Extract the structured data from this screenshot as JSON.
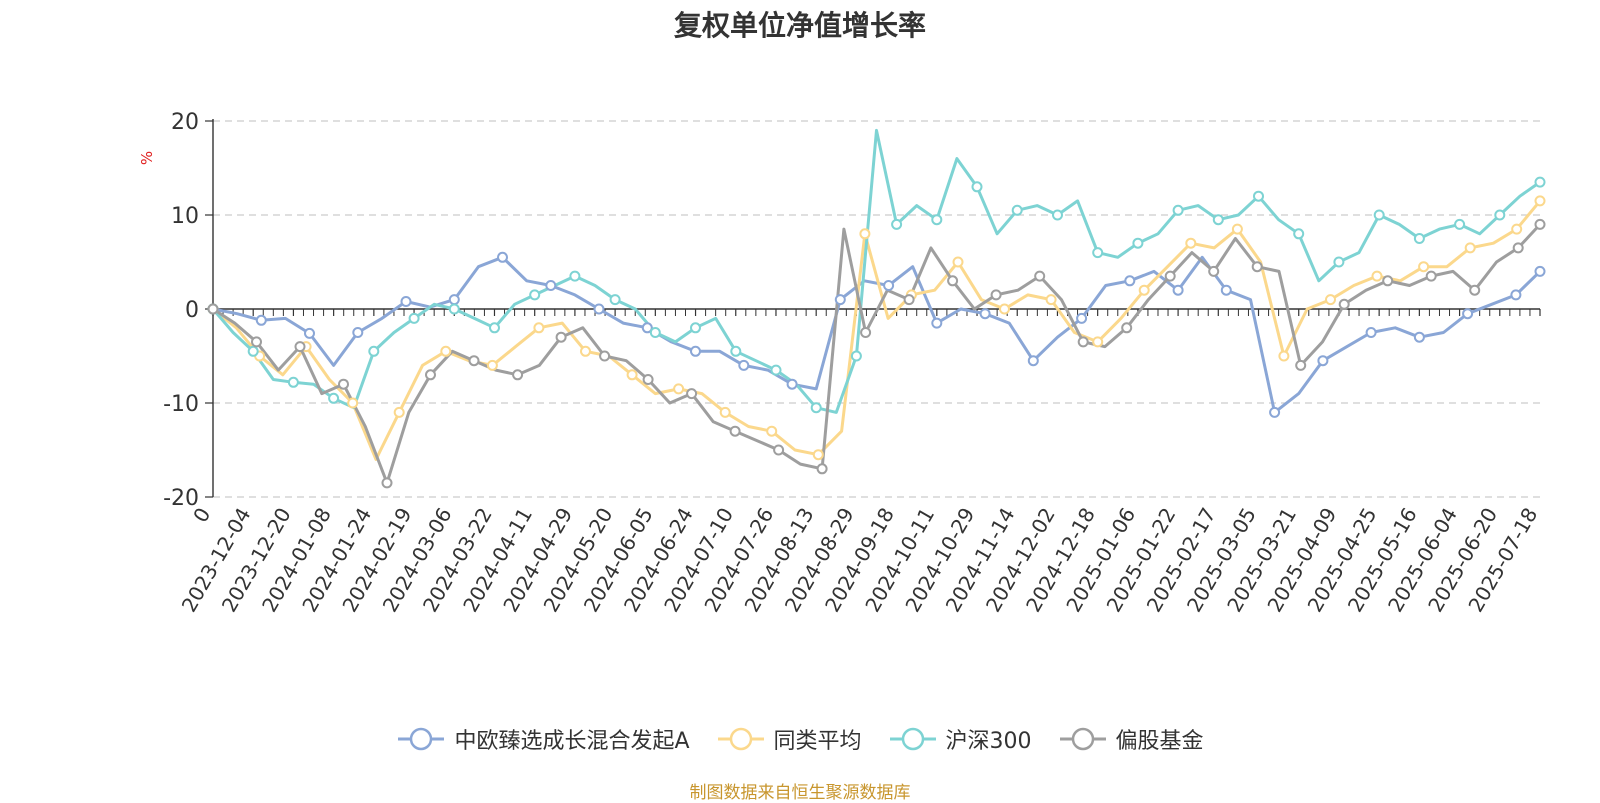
{
  "chart_data": {
    "type": "line",
    "title": "复权单位净值增长率",
    "ylabel": "%",
    "ylim": [
      -20,
      20
    ],
    "y_ticks": [
      "20",
      "10",
      "0",
      "-10",
      "-20"
    ],
    "x_tick_labels": [
      "0",
      "2023-12-04",
      "2023-12-20",
      "2024-01-08",
      "2024-01-24",
      "2024-02-19",
      "2024-03-06",
      "2024-03-22",
      "2024-04-11",
      "2024-04-29",
      "2024-05-20",
      "2024-06-05",
      "2024-06-24",
      "2024-07-10",
      "2024-07-26",
      "2024-08-13",
      "2024-08-29",
      "2024-09-18",
      "2024-10-11",
      "2024-10-29",
      "2024-11-14",
      "2024-12-02",
      "2024-12-18",
      "2025-01-06",
      "2025-01-22",
      "2025-02-17",
      "2025-03-05",
      "2025-03-21",
      "2025-04-09",
      "2025-04-25",
      "2025-05-16",
      "2025-06-04",
      "2025-06-20",
      "2025-07-18"
    ],
    "grid": "horizontal-dashed",
    "legend_position": "bottom",
    "series": [
      {
        "name": "中欧臻选成长混合发起A",
        "color": "#8aa6d6",
        "values": [
          0,
          -0.5,
          -1.2,
          -1.0,
          -2.6,
          -6.0,
          -2.5,
          -1.0,
          0.8,
          0.2,
          1.0,
          4.5,
          5.5,
          3.0,
          2.5,
          1.5,
          0,
          -1.5,
          -2.0,
          -3.5,
          -4.5,
          -4.5,
          -6.0,
          -6.5,
          -8.0,
          -8.5,
          1.0,
          3.0,
          2.5,
          4.5,
          -1.5,
          0,
          -0.5,
          -1.5,
          -5.5,
          -3.0,
          -1.0,
          2.5,
          3.0,
          4.0,
          2.0,
          5.5,
          2.0,
          1.0,
          -11.0,
          -9.0,
          -5.5,
          -4.0,
          -2.5,
          -2.0,
          -3.0,
          -2.5,
          -0.5,
          0.5,
          1.5,
          4.0
        ]
      },
      {
        "name": "同类平均",
        "color": "#fbd88c",
        "values": [
          0,
          -2.0,
          -5.0,
          -7.0,
          -4.0,
          -7.5,
          -10.0,
          -16.0,
          -11.0,
          -6.0,
          -4.5,
          -5.5,
          -6.0,
          -4.0,
          -2.0,
          -1.5,
          -4.5,
          -5.0,
          -7.0,
          -9.0,
          -8.5,
          -9.0,
          -11.0,
          -12.5,
          -13.0,
          -15.0,
          -15.5,
          -13.0,
          8.0,
          -1.0,
          1.5,
          2.0,
          5.0,
          1.0,
          0,
          1.5,
          1.0,
          -2.5,
          -3.5,
          -1.0,
          2.0,
          4.5,
          7.0,
          6.5,
          8.5,
          5.0,
          -5.0,
          0,
          1.0,
          2.5,
          3.5,
          3.0,
          4.5,
          4.5,
          6.5,
          7.0,
          8.5,
          11.5
        ]
      },
      {
        "name": "沪深300",
        "color": "#7dd3d3",
        "values": [
          0,
          -2.5,
          -4.5,
          -7.5,
          -7.8,
          -8.0,
          -9.5,
          -10.5,
          -4.5,
          -2.5,
          -1.0,
          0.5,
          0,
          -1.0,
          -2.0,
          0.5,
          1.5,
          2.5,
          3.5,
          2.5,
          1.0,
          0,
          -2.5,
          -3.5,
          -2.0,
          -1.0,
          -4.5,
          -5.5,
          -6.5,
          -8.0,
          -10.5,
          -11.0,
          -5.0,
          19.0,
          9.0,
          11.0,
          9.5,
          16.0,
          13.0,
          8.0,
          10.5,
          11.0,
          10.0,
          11.5,
          6.0,
          5.5,
          7.0,
          8.0,
          10.5,
          11.0,
          9.5,
          10.0,
          12.0,
          9.5,
          8.0,
          3.0,
          5.0,
          6.0,
          10.0,
          9.0,
          7.5,
          8.5,
          9.0,
          8.0,
          10.0,
          12.0,
          13.5
        ]
      },
      {
        "name": "偏股基金",
        "color": "#9e9e9e",
        "values": [
          0,
          -1.5,
          -3.5,
          -6.5,
          -4.0,
          -9.0,
          -8.0,
          -12.5,
          -18.5,
          -11.0,
          -7.0,
          -4.5,
          -5.5,
          -6.5,
          -7.0,
          -6.0,
          -3.0,
          -2.0,
          -5.0,
          -5.5,
          -7.5,
          -10.0,
          -9.0,
          -12.0,
          -13.0,
          -14.0,
          -15.0,
          -16.5,
          -17.0,
          8.5,
          -2.5,
          2.0,
          1.0,
          6.5,
          3.0,
          0,
          1.5,
          2.0,
          3.5,
          1.0,
          -3.5,
          -4.0,
          -2.0,
          1.0,
          3.5,
          6.0,
          4.0,
          7.5,
          4.5,
          4.0,
          -6.0,
          -3.5,
          0.5,
          2.0,
          3.0,
          2.5,
          3.5,
          4.0,
          2.0,
          5.0,
          6.5,
          9.0
        ]
      }
    ]
  },
  "source_note": "制图数据来自恒生聚源数据库"
}
